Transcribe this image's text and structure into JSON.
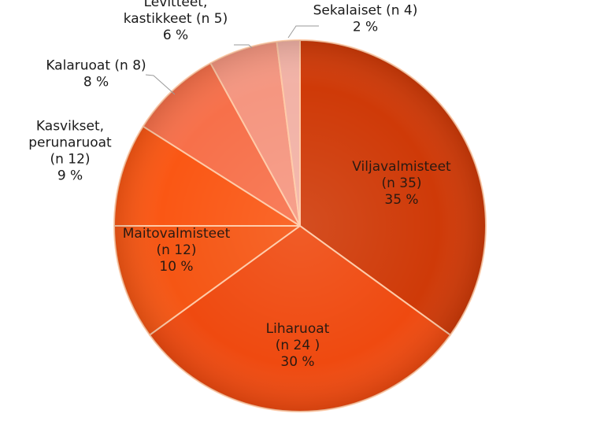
{
  "chart_data": {
    "type": "pie",
    "title": "",
    "slices": [
      {
        "lines": [
          "Viljavalmisteet",
          "(n 35)",
          "35 %"
        ],
        "value": 35,
        "color": "#cf3a08"
      },
      {
        "lines": [
          "Liharuoat",
          "(n 24 )",
          "30 %"
        ],
        "value": 30,
        "color": "#ef4a10"
      },
      {
        "lines": [
          "Maitovalmisteet",
          "(n 12)",
          "10 %"
        ],
        "value": 10,
        "color": "#f55614"
      },
      {
        "lines": [
          "Kasvikset,",
          "perunaruoat",
          "(n 12)",
          "9 %"
        ],
        "value": 9,
        "color": "#fa5714"
      },
      {
        "lines": [
          "Kalaruoat (n 8)",
          "8 %"
        ],
        "value": 8,
        "color": "#f7704a"
      },
      {
        "lines": [
          "Levitteet,",
          "kastikkeet (n 5)",
          "6 %"
        ],
        "value": 6,
        "color": "#f59680"
      },
      {
        "lines": [
          "Sekalaiset (n 4)",
          "2 %"
        ],
        "value": 2,
        "color": "#f2b2a6"
      }
    ]
  }
}
